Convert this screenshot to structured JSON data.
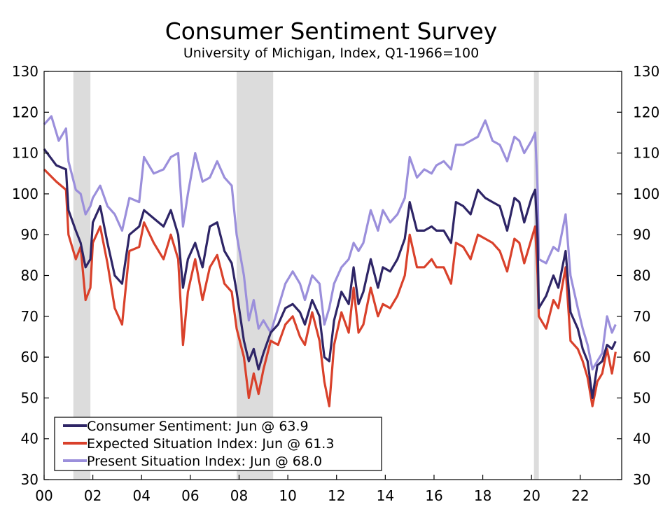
{
  "chart_data": {
    "type": "line",
    "title": "Consumer Sentiment Survey",
    "subtitle": "University of Michigan, Index, Q1-1966=100",
    "xlabel": "",
    "ylabel": "",
    "x_range": [
      2000.0,
      2023.7
    ],
    "ylim": [
      30,
      130
    ],
    "yticks": [
      30,
      40,
      50,
      60,
      70,
      80,
      90,
      100,
      110,
      120,
      130
    ],
    "xtick_positions": [
      2000,
      2002,
      2004,
      2006,
      2008,
      2010,
      2012,
      2014,
      2016,
      2018,
      2020,
      2022
    ],
    "xtick_labels": [
      "00",
      "02",
      "04",
      "06",
      "08",
      "10",
      "12",
      "14",
      "16",
      "18",
      "20",
      "22"
    ],
    "grid": false,
    "recessions": [
      {
        "start": 2001.2,
        "end": 2001.9
      },
      {
        "start": 2007.9,
        "end": 2009.4
      },
      {
        "start": 2020.1,
        "end": 2020.3
      }
    ],
    "legend_position": "bottom-left",
    "series": [
      {
        "name": "Consumer Sentiment",
        "legend": "Consumer Sentiment: Jun @ 63.9",
        "color": "#2e2566",
        "points": [
          [
            2000.0,
            111
          ],
          [
            2000.5,
            107
          ],
          [
            2000.9,
            106
          ],
          [
            2001.0,
            96
          ],
          [
            2001.3,
            91
          ],
          [
            2001.5,
            88
          ],
          [
            2001.7,
            82
          ],
          [
            2001.9,
            84
          ],
          [
            2002.0,
            93
          ],
          [
            2002.3,
            97
          ],
          [
            2002.6,
            88
          ],
          [
            2002.9,
            80
          ],
          [
            2003.2,
            78
          ],
          [
            2003.5,
            90
          ],
          [
            2003.9,
            92
          ],
          [
            2004.1,
            96
          ],
          [
            2004.5,
            94
          ],
          [
            2004.9,
            92
          ],
          [
            2005.2,
            96
          ],
          [
            2005.5,
            90
          ],
          [
            2005.7,
            77
          ],
          [
            2005.9,
            84
          ],
          [
            2006.2,
            88
          ],
          [
            2006.5,
            82
          ],
          [
            2006.8,
            92
          ],
          [
            2007.1,
            93
          ],
          [
            2007.4,
            86
          ],
          [
            2007.7,
            83
          ],
          [
            2007.9,
            76
          ],
          [
            2008.2,
            64
          ],
          [
            2008.4,
            59
          ],
          [
            2008.6,
            62
          ],
          [
            2008.8,
            57
          ],
          [
            2009.0,
            61
          ],
          [
            2009.3,
            66
          ],
          [
            2009.6,
            68
          ],
          [
            2009.9,
            72
          ],
          [
            2010.2,
            73
          ],
          [
            2010.5,
            71
          ],
          [
            2010.7,
            68
          ],
          [
            2011.0,
            74
          ],
          [
            2011.3,
            70
          ],
          [
            2011.5,
            60
          ],
          [
            2011.7,
            59
          ],
          [
            2011.9,
            69
          ],
          [
            2012.2,
            76
          ],
          [
            2012.5,
            73
          ],
          [
            2012.7,
            82
          ],
          [
            2012.9,
            73
          ],
          [
            2013.1,
            76
          ],
          [
            2013.4,
            84
          ],
          [
            2013.7,
            77
          ],
          [
            2013.9,
            82
          ],
          [
            2014.2,
            81
          ],
          [
            2014.5,
            84
          ],
          [
            2014.8,
            89
          ],
          [
            2015.0,
            98
          ],
          [
            2015.3,
            91
          ],
          [
            2015.6,
            91
          ],
          [
            2015.9,
            92
          ],
          [
            2016.1,
            91
          ],
          [
            2016.4,
            91
          ],
          [
            2016.7,
            88
          ],
          [
            2016.9,
            98
          ],
          [
            2017.2,
            97
          ],
          [
            2017.5,
            95
          ],
          [
            2017.8,
            101
          ],
          [
            2018.1,
            99
          ],
          [
            2018.4,
            98
          ],
          [
            2018.7,
            97
          ],
          [
            2019.0,
            91
          ],
          [
            2019.3,
            99
          ],
          [
            2019.5,
            98
          ],
          [
            2019.7,
            93
          ],
          [
            2020.0,
            99
          ],
          [
            2020.15,
            101
          ],
          [
            2020.25,
            89
          ],
          [
            2020.3,
            72
          ],
          [
            2020.6,
            75
          ],
          [
            2020.9,
            80
          ],
          [
            2021.1,
            77
          ],
          [
            2021.4,
            86
          ],
          [
            2021.6,
            71
          ],
          [
            2021.9,
            67
          ],
          [
            2022.1,
            62
          ],
          [
            2022.3,
            59
          ],
          [
            2022.5,
            50
          ],
          [
            2022.7,
            58
          ],
          [
            2022.9,
            59
          ],
          [
            2023.1,
            63
          ],
          [
            2023.3,
            62
          ],
          [
            2023.45,
            63.9
          ]
        ]
      },
      {
        "name": "Expected Situation Index",
        "legend": "Expected Situation Index: Jun @ 61.3",
        "color": "#d9412b",
        "points": [
          [
            2000.0,
            106
          ],
          [
            2000.5,
            103
          ],
          [
            2000.9,
            101
          ],
          [
            2001.0,
            90
          ],
          [
            2001.3,
            84
          ],
          [
            2001.5,
            87
          ],
          [
            2001.7,
            74
          ],
          [
            2001.9,
            77
          ],
          [
            2002.0,
            88
          ],
          [
            2002.3,
            92
          ],
          [
            2002.6,
            83
          ],
          [
            2002.9,
            72
          ],
          [
            2003.2,
            68
          ],
          [
            2003.5,
            86
          ],
          [
            2003.9,
            87
          ],
          [
            2004.1,
            93
          ],
          [
            2004.5,
            88
          ],
          [
            2004.9,
            84
          ],
          [
            2005.2,
            90
          ],
          [
            2005.5,
            84
          ],
          [
            2005.7,
            63
          ],
          [
            2005.9,
            76
          ],
          [
            2006.2,
            84
          ],
          [
            2006.5,
            74
          ],
          [
            2006.8,
            82
          ],
          [
            2007.1,
            85
          ],
          [
            2007.4,
            78
          ],
          [
            2007.7,
            76
          ],
          [
            2007.9,
            67
          ],
          [
            2008.2,
            60
          ],
          [
            2008.4,
            50
          ],
          [
            2008.6,
            56
          ],
          [
            2008.8,
            51
          ],
          [
            2009.0,
            57
          ],
          [
            2009.3,
            64
          ],
          [
            2009.6,
            63
          ],
          [
            2009.9,
            68
          ],
          [
            2010.2,
            70
          ],
          [
            2010.5,
            65
          ],
          [
            2010.7,
            63
          ],
          [
            2011.0,
            71
          ],
          [
            2011.3,
            64
          ],
          [
            2011.5,
            54
          ],
          [
            2011.7,
            48
          ],
          [
            2011.9,
            63
          ],
          [
            2012.2,
            71
          ],
          [
            2012.5,
            66
          ],
          [
            2012.7,
            77
          ],
          [
            2012.9,
            66
          ],
          [
            2013.1,
            68
          ],
          [
            2013.4,
            77
          ],
          [
            2013.7,
            70
          ],
          [
            2013.9,
            73
          ],
          [
            2014.2,
            72
          ],
          [
            2014.5,
            75
          ],
          [
            2014.8,
            80
          ],
          [
            2015.0,
            90
          ],
          [
            2015.3,
            82
          ],
          [
            2015.6,
            82
          ],
          [
            2015.9,
            84
          ],
          [
            2016.1,
            82
          ],
          [
            2016.4,
            82
          ],
          [
            2016.7,
            78
          ],
          [
            2016.9,
            88
          ],
          [
            2017.2,
            87
          ],
          [
            2017.5,
            84
          ],
          [
            2017.8,
            90
          ],
          [
            2018.1,
            89
          ],
          [
            2018.4,
            88
          ],
          [
            2018.7,
            86
          ],
          [
            2019.0,
            81
          ],
          [
            2019.3,
            89
          ],
          [
            2019.5,
            88
          ],
          [
            2019.7,
            83
          ],
          [
            2020.0,
            89
          ],
          [
            2020.15,
            92
          ],
          [
            2020.25,
            80
          ],
          [
            2020.3,
            70
          ],
          [
            2020.6,
            67
          ],
          [
            2020.9,
            74
          ],
          [
            2021.1,
            72
          ],
          [
            2021.4,
            82
          ],
          [
            2021.6,
            64
          ],
          [
            2021.9,
            62
          ],
          [
            2022.1,
            59
          ],
          [
            2022.3,
            55
          ],
          [
            2022.5,
            48
          ],
          [
            2022.7,
            54
          ],
          [
            2022.9,
            56
          ],
          [
            2023.1,
            62
          ],
          [
            2023.3,
            56
          ],
          [
            2023.45,
            61.3
          ]
        ]
      },
      {
        "name": "Present Situation Index",
        "legend": "Present Situation Index: Jun @ 68.0",
        "color": "#9b8fdb",
        "points": [
          [
            2000.0,
            117
          ],
          [
            2000.3,
            119
          ],
          [
            2000.6,
            113
          ],
          [
            2000.9,
            116
          ],
          [
            2001.0,
            108
          ],
          [
            2001.3,
            101
          ],
          [
            2001.5,
            100
          ],
          [
            2001.7,
            95
          ],
          [
            2001.9,
            97
          ],
          [
            2002.0,
            99
          ],
          [
            2002.3,
            102
          ],
          [
            2002.6,
            97
          ],
          [
            2002.9,
            95
          ],
          [
            2003.2,
            91
          ],
          [
            2003.5,
            99
          ],
          [
            2003.9,
            98
          ],
          [
            2004.1,
            109
          ],
          [
            2004.5,
            105
          ],
          [
            2004.9,
            106
          ],
          [
            2005.2,
            109
          ],
          [
            2005.5,
            110
          ],
          [
            2005.7,
            92
          ],
          [
            2005.9,
            100
          ],
          [
            2006.2,
            110
          ],
          [
            2006.5,
            103
          ],
          [
            2006.8,
            104
          ],
          [
            2007.1,
            108
          ],
          [
            2007.4,
            104
          ],
          [
            2007.7,
            102
          ],
          [
            2007.9,
            90
          ],
          [
            2008.2,
            80
          ],
          [
            2008.4,
            69
          ],
          [
            2008.6,
            74
          ],
          [
            2008.8,
            67
          ],
          [
            2009.0,
            69
          ],
          [
            2009.3,
            66
          ],
          [
            2009.6,
            72
          ],
          [
            2009.9,
            78
          ],
          [
            2010.2,
            81
          ],
          [
            2010.5,
            78
          ],
          [
            2010.7,
            74
          ],
          [
            2011.0,
            80
          ],
          [
            2011.3,
            78
          ],
          [
            2011.5,
            68
          ],
          [
            2011.7,
            72
          ],
          [
            2011.9,
            78
          ],
          [
            2012.2,
            82
          ],
          [
            2012.5,
            84
          ],
          [
            2012.7,
            88
          ],
          [
            2012.9,
            86
          ],
          [
            2013.1,
            88
          ],
          [
            2013.4,
            96
          ],
          [
            2013.7,
            91
          ],
          [
            2013.9,
            96
          ],
          [
            2014.2,
            93
          ],
          [
            2014.5,
            95
          ],
          [
            2014.8,
            99
          ],
          [
            2015.0,
            109
          ],
          [
            2015.3,
            104
          ],
          [
            2015.6,
            106
          ],
          [
            2015.9,
            105
          ],
          [
            2016.1,
            107
          ],
          [
            2016.4,
            108
          ],
          [
            2016.7,
            106
          ],
          [
            2016.9,
            112
          ],
          [
            2017.2,
            112
          ],
          [
            2017.5,
            113
          ],
          [
            2017.8,
            114
          ],
          [
            2018.1,
            118
          ],
          [
            2018.4,
            113
          ],
          [
            2018.7,
            112
          ],
          [
            2019.0,
            108
          ],
          [
            2019.3,
            114
          ],
          [
            2019.5,
            113
          ],
          [
            2019.7,
            110
          ],
          [
            2020.0,
            113
          ],
          [
            2020.15,
            115
          ],
          [
            2020.25,
            101
          ],
          [
            2020.3,
            84
          ],
          [
            2020.6,
            83
          ],
          [
            2020.9,
            87
          ],
          [
            2021.1,
            86
          ],
          [
            2021.4,
            95
          ],
          [
            2021.6,
            80
          ],
          [
            2021.9,
            72
          ],
          [
            2022.1,
            67
          ],
          [
            2022.3,
            63
          ],
          [
            2022.5,
            57
          ],
          [
            2022.7,
            59
          ],
          [
            2022.9,
            61
          ],
          [
            2023.1,
            70
          ],
          [
            2023.3,
            66
          ],
          [
            2023.45,
            68.0
          ]
        ]
      }
    ]
  }
}
